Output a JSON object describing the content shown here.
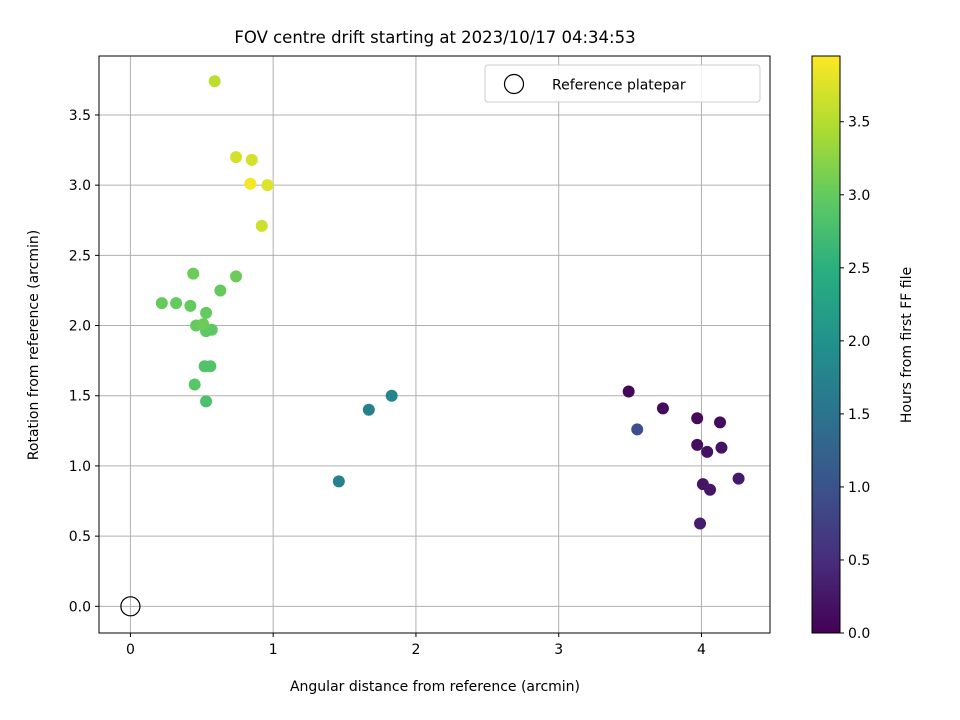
{
  "chart_data": {
    "type": "scatter",
    "title": "FOV centre drift starting at 2023/10/17 04:34:53",
    "xlabel": "Angular distance from reference (arcmin)",
    "ylabel": "Rotation from reference (arcmin)",
    "xlim": [
      -0.22,
      4.48
    ],
    "ylim": [
      -0.19,
      3.92
    ],
    "xticks": [
      "0",
      "1",
      "2",
      "3",
      "4"
    ],
    "yticks": [
      "0.0",
      "0.5",
      "1.0",
      "1.5",
      "2.0",
      "2.5",
      "3.0",
      "3.5"
    ],
    "grid": true,
    "legend": {
      "location": "top-right",
      "entries": [
        "Reference platepar"
      ]
    },
    "reference": {
      "x": 0,
      "y": 0,
      "marker": "open-circle"
    },
    "colorbar": {
      "label": "Hours from first FF file",
      "colormap": "viridis",
      "range": [
        0,
        3.95
      ],
      "ticks": [
        "0.0",
        "0.5",
        "1.0",
        "1.5",
        "2.0",
        "2.5",
        "3.0",
        "3.5"
      ]
    },
    "points": [
      {
        "x": 3.49,
        "y": 1.53,
        "h": 0.08
      },
      {
        "x": 3.73,
        "y": 1.41,
        "h": 0.12
      },
      {
        "x": 3.97,
        "y": 1.34,
        "h": 0.1
      },
      {
        "x": 4.13,
        "y": 1.31,
        "h": 0.13
      },
      {
        "x": 3.97,
        "y": 1.15,
        "h": 0.15
      },
      {
        "x": 4.04,
        "y": 1.1,
        "h": 0.18
      },
      {
        "x": 4.14,
        "y": 1.13,
        "h": 0.2
      },
      {
        "x": 4.01,
        "y": 0.87,
        "h": 0.22
      },
      {
        "x": 4.06,
        "y": 0.83,
        "h": 0.25
      },
      {
        "x": 4.26,
        "y": 0.91,
        "h": 0.28
      },
      {
        "x": 3.99,
        "y": 0.59,
        "h": 0.3
      },
      {
        "x": 3.55,
        "y": 1.26,
        "h": 0.95
      },
      {
        "x": 1.46,
        "y": 0.89,
        "h": 1.7
      },
      {
        "x": 1.67,
        "y": 1.4,
        "h": 1.72
      },
      {
        "x": 1.83,
        "y": 1.5,
        "h": 1.78
      },
      {
        "x": 0.53,
        "y": 1.46,
        "h": 2.8
      },
      {
        "x": 0.45,
        "y": 1.58,
        "h": 2.9
      },
      {
        "x": 0.52,
        "y": 1.71,
        "h": 2.85
      },
      {
        "x": 0.56,
        "y": 1.71,
        "h": 2.85
      },
      {
        "x": 0.53,
        "y": 1.96,
        "h": 2.95
      },
      {
        "x": 0.57,
        "y": 1.97,
        "h": 2.95
      },
      {
        "x": 0.46,
        "y": 2.0,
        "h": 3.0
      },
      {
        "x": 0.51,
        "y": 2.01,
        "h": 3.05
      },
      {
        "x": 0.53,
        "y": 2.09,
        "h": 3.0
      },
      {
        "x": 0.22,
        "y": 2.16,
        "h": 3.0
      },
      {
        "x": 0.32,
        "y": 2.16,
        "h": 3.0
      },
      {
        "x": 0.42,
        "y": 2.14,
        "h": 3.0
      },
      {
        "x": 0.63,
        "y": 2.25,
        "h": 3.0
      },
      {
        "x": 0.44,
        "y": 2.37,
        "h": 3.05
      },
      {
        "x": 0.74,
        "y": 2.35,
        "h": 3.05
      },
      {
        "x": 0.92,
        "y": 2.71,
        "h": 3.65
      },
      {
        "x": 0.84,
        "y": 3.01,
        "h": 3.9
      },
      {
        "x": 0.96,
        "y": 3.0,
        "h": 3.75
      },
      {
        "x": 0.74,
        "y": 3.2,
        "h": 3.7
      },
      {
        "x": 0.85,
        "y": 3.18,
        "h": 3.7
      },
      {
        "x": 0.59,
        "y": 3.74,
        "h": 3.55
      }
    ]
  }
}
